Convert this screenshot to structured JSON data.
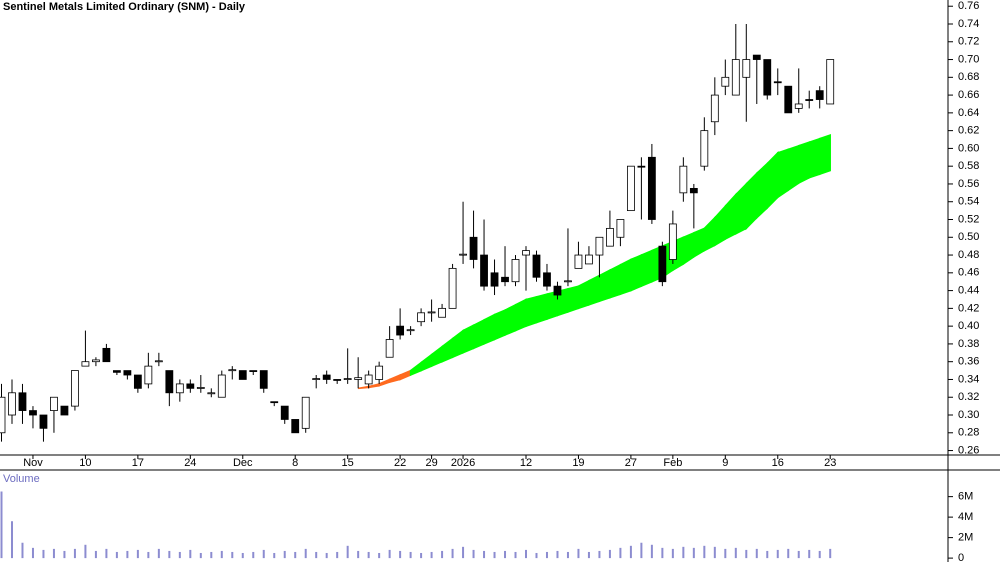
{
  "chart_data": {
    "type": "candlestick",
    "title": "Sentinel Metals Limited Ordinary (SNM) - Daily",
    "categories": [
      null,
      null,
      null,
      "Nov",
      null,
      null,
      null,
      null,
      "10",
      null,
      null,
      null,
      null,
      "17",
      null,
      null,
      null,
      null,
      "24",
      null,
      null,
      null,
      null,
      "Dec",
      null,
      null,
      null,
      null,
      "8",
      null,
      null,
      null,
      null,
      "15",
      null,
      null,
      null,
      null,
      "22",
      null,
      null,
      "29",
      null,
      null,
      "2026",
      null,
      null,
      null,
      null,
      null,
      "12",
      null,
      null,
      null,
      null,
      "19",
      null,
      null,
      null,
      null,
      "27",
      null,
      null,
      null,
      "Feb",
      null,
      null,
      null,
      null,
      "9",
      null,
      null,
      null,
      null,
      "16",
      null,
      null,
      null,
      null,
      "23"
    ],
    "ohlc": [
      [
        0.28,
        0.335,
        0.27,
        0.32
      ],
      [
        0.3,
        0.34,
        0.29,
        0.325
      ],
      [
        0.325,
        0.335,
        0.29,
        0.305
      ],
      [
        0.305,
        0.31,
        0.285,
        0.3
      ],
      [
        0.3,
        0.3,
        0.27,
        0.285
      ],
      [
        0.305,
        0.32,
        0.28,
        0.32
      ],
      [
        0.31,
        0.31,
        0.3,
        0.3
      ],
      [
        0.31,
        0.35,
        0.305,
        0.35
      ],
      [
        0.355,
        0.395,
        0.355,
        0.36
      ],
      [
        0.36,
        0.365,
        0.355,
        0.362
      ],
      [
        0.375,
        0.38,
        0.36,
        0.36
      ],
      [
        0.35,
        0.35,
        0.345,
        0.348
      ],
      [
        0.35,
        0.35,
        0.34,
        0.345
      ],
      [
        0.345,
        0.345,
        0.325,
        0.33
      ],
      [
        0.335,
        0.37,
        0.33,
        0.355
      ],
      [
        0.36,
        0.37,
        0.355,
        0.361
      ],
      [
        0.35,
        0.35,
        0.31,
        0.325
      ],
      [
        0.325,
        0.34,
        0.315,
        0.335
      ],
      [
        0.335,
        0.34,
        0.325,
        0.33
      ],
      [
        0.33,
        0.345,
        0.325,
        0.331
      ],
      [
        0.325,
        0.33,
        0.32,
        0.325
      ],
      [
        0.32,
        0.35,
        0.32,
        0.345
      ],
      [
        0.35,
        0.355,
        0.34,
        0.351
      ],
      [
        0.35,
        0.35,
        0.34,
        0.34
      ],
      [
        0.35,
        0.35,
        0.345,
        0.349
      ],
      [
        0.35,
        0.35,
        0.325,
        0.33
      ],
      [
        0.315,
        0.315,
        0.31,
        0.314
      ],
      [
        0.31,
        0.31,
        0.29,
        0.295
      ],
      [
        0.295,
        0.295,
        0.28,
        0.28
      ],
      [
        0.285,
        0.32,
        0.28,
        0.32
      ],
      [
        0.34,
        0.345,
        0.33,
        0.341
      ],
      [
        0.345,
        0.35,
        0.335,
        0.34
      ],
      [
        0.34,
        0.34,
        0.335,
        0.339
      ],
      [
        0.34,
        0.375,
        0.335,
        0.341
      ],
      [
        0.34,
        0.365,
        0.33,
        0.342
      ],
      [
        0.335,
        0.35,
        0.33,
        0.345
      ],
      [
        0.34,
        0.36,
        0.335,
        0.355
      ],
      [
        0.365,
        0.4,
        0.365,
        0.385
      ],
      [
        0.4,
        0.42,
        0.385,
        0.39
      ],
      [
        0.395,
        0.4,
        0.39,
        0.396
      ],
      [
        0.405,
        0.42,
        0.4,
        0.415
      ],
      [
        0.415,
        0.43,
        0.405,
        0.416
      ],
      [
        0.41,
        0.425,
        0.41,
        0.42
      ],
      [
        0.42,
        0.47,
        0.42,
        0.465
      ],
      [
        0.48,
        0.54,
        0.47,
        0.481
      ],
      [
        0.5,
        0.53,
        0.465,
        0.475
      ],
      [
        0.48,
        0.52,
        0.44,
        0.445
      ],
      [
        0.46,
        0.475,
        0.435,
        0.445
      ],
      [
        0.455,
        0.49,
        0.445,
        0.45
      ],
      [
        0.45,
        0.48,
        0.445,
        0.475
      ],
      [
        0.48,
        0.49,
        0.44,
        0.485
      ],
      [
        0.48,
        0.485,
        0.45,
        0.455
      ],
      [
        0.46,
        0.47,
        0.44,
        0.445
      ],
      [
        0.445,
        0.45,
        0.43,
        0.435
      ],
      [
        0.45,
        0.51,
        0.445,
        0.451
      ],
      [
        0.465,
        0.495,
        0.465,
        0.48
      ],
      [
        0.47,
        0.49,
        0.47,
        0.48
      ],
      [
        0.48,
        0.5,
        0.455,
        0.5
      ],
      [
        0.49,
        0.53,
        0.49,
        0.51
      ],
      [
        0.5,
        0.52,
        0.49,
        0.52
      ],
      [
        0.53,
        0.58,
        0.53,
        0.58
      ],
      [
        0.58,
        0.59,
        0.52,
        0.579
      ],
      [
        0.59,
        0.605,
        0.515,
        0.52
      ],
      [
        0.49,
        0.495,
        0.445,
        0.45
      ],
      [
        0.475,
        0.53,
        0.47,
        0.515
      ],
      [
        0.55,
        0.59,
        0.54,
        0.58
      ],
      [
        0.555,
        0.56,
        0.51,
        0.55
      ],
      [
        0.58,
        0.635,
        0.575,
        0.62
      ],
      [
        0.63,
        0.68,
        0.615,
        0.66
      ],
      [
        0.67,
        0.7,
        0.66,
        0.68
      ],
      [
        0.66,
        0.74,
        0.66,
        0.7
      ],
      [
        0.68,
        0.74,
        0.63,
        0.7
      ],
      [
        0.705,
        0.705,
        0.65,
        0.7
      ],
      [
        0.7,
        0.7,
        0.655,
        0.66
      ],
      [
        0.675,
        0.69,
        0.66,
        0.674
      ],
      [
        0.67,
        0.67,
        0.64,
        0.64
      ],
      [
        0.645,
        0.69,
        0.64,
        0.65
      ],
      [
        0.655,
        0.665,
        0.645,
        0.654
      ],
      [
        0.665,
        0.67,
        0.645,
        0.655
      ],
      [
        0.65,
        0.7,
        0.65,
        0.7
      ]
    ],
    "bands": [
      {
        "color": "#ff6a1f",
        "upper": [
          null,
          null,
          null,
          null,
          null,
          null,
          null,
          null,
          null,
          null,
          null,
          null,
          null,
          null,
          null,
          null,
          null,
          null,
          null,
          null,
          null,
          null,
          null,
          null,
          null,
          null,
          null,
          null,
          null,
          null,
          null,
          null,
          null,
          null,
          0.33,
          0.332,
          0.335,
          0.34,
          0.345,
          0.35,
          null,
          null,
          null,
          null,
          null,
          null,
          null,
          null,
          null,
          null,
          null,
          null,
          null,
          null,
          null,
          null,
          null,
          null,
          null,
          null,
          null,
          null,
          null,
          null,
          null,
          null,
          null,
          null,
          null,
          null,
          null,
          null,
          null,
          null,
          null,
          null,
          null,
          null,
          null,
          null
        ],
        "lower": [
          null,
          null,
          null,
          null,
          null,
          null,
          null,
          null,
          null,
          null,
          null,
          null,
          null,
          null,
          null,
          null,
          null,
          null,
          null,
          null,
          null,
          null,
          null,
          null,
          null,
          null,
          null,
          null,
          null,
          null,
          null,
          null,
          null,
          null,
          0.33,
          0.331,
          0.333,
          0.337,
          0.34,
          0.345,
          null,
          null,
          null,
          null,
          null,
          null,
          null,
          null,
          null,
          null,
          null,
          null,
          null,
          null,
          null,
          null,
          null,
          null,
          null,
          null,
          null,
          null,
          null,
          null,
          null,
          null,
          null,
          null,
          null,
          null,
          null,
          null,
          null,
          null,
          null,
          null,
          null,
          null,
          null,
          null
        ]
      },
      {
        "color": "#00ff00",
        "upper": [
          null,
          null,
          null,
          null,
          null,
          null,
          null,
          null,
          null,
          null,
          null,
          null,
          null,
          null,
          null,
          null,
          null,
          null,
          null,
          null,
          null,
          null,
          null,
          null,
          null,
          null,
          null,
          null,
          null,
          null,
          null,
          null,
          null,
          null,
          null,
          null,
          null,
          null,
          null,
          0.35,
          0.359,
          0.368,
          0.377,
          0.386,
          0.395,
          0.401,
          0.407,
          0.413,
          0.418,
          0.424,
          0.43,
          0.433,
          0.436,
          0.439,
          0.442,
          0.445,
          0.451,
          0.457,
          0.463,
          0.469,
          0.475,
          0.48,
          0.485,
          0.49,
          0.495,
          0.5,
          0.505,
          0.51,
          0.522,
          0.535,
          0.548,
          0.56,
          0.572,
          0.583,
          0.595,
          0.599,
          0.603,
          0.607,
          0.611,
          0.615
        ],
        "lower": [
          null,
          null,
          null,
          null,
          null,
          null,
          null,
          null,
          null,
          null,
          null,
          null,
          null,
          null,
          null,
          null,
          null,
          null,
          null,
          null,
          null,
          null,
          null,
          null,
          null,
          null,
          null,
          null,
          null,
          null,
          null,
          null,
          null,
          null,
          null,
          null,
          null,
          null,
          null,
          0.345,
          0.35,
          0.355,
          0.36,
          0.365,
          0.37,
          0.375,
          0.38,
          0.385,
          0.39,
          0.395,
          0.4,
          0.404,
          0.408,
          0.412,
          0.416,
          0.42,
          0.424,
          0.428,
          0.432,
          0.436,
          0.44,
          0.445,
          0.45,
          0.455,
          0.463,
          0.47,
          0.478,
          0.485,
          0.491,
          0.498,
          0.504,
          0.51,
          0.522,
          0.533,
          0.545,
          0.553,
          0.561,
          0.567,
          0.571,
          0.575
        ]
      }
    ],
    "ylim": [
      0.255,
      0.767
    ],
    "yticks": [
      0.26,
      0.28,
      {
        "value": 0.3,
        "label": "0.30"
      },
      0.32,
      0.34,
      0.36,
      0.38,
      {
        "value": 0.4,
        "label": "0.40"
      },
      0.42,
      0.44,
      0.46,
      0.48,
      {
        "value": 0.5,
        "label": "0.50"
      },
      0.52,
      0.54,
      0.56,
      0.58,
      {
        "value": 0.6,
        "label": "0.60"
      },
      0.62,
      0.64,
      0.66,
      0.68,
      {
        "value": 0.7,
        "label": "0.70"
      },
      0.72,
      0.74,
      0.76
    ],
    "volume_title": "Volume",
    "volume_color": "#8c8cd0",
    "volume": [
      6500000,
      3600000,
      1500000,
      1000000,
      800000,
      900000,
      700000,
      900000,
      1300000,
      700000,
      900000,
      600000,
      700000,
      800000,
      600000,
      900000,
      700000,
      600000,
      800000,
      500000,
      600000,
      700000,
      600000,
      500000,
      600000,
      800000,
      500000,
      700000,
      600000,
      900000,
      600000,
      500000,
      600000,
      1200000,
      700000,
      600000,
      500000,
      800000,
      700000,
      600000,
      500000,
      600000,
      700000,
      900000,
      1100000,
      800000,
      700000,
      600000,
      700000,
      600000,
      800000,
      500000,
      600000,
      700000,
      600000,
      900000,
      600000,
      700000,
      800000,
      1000000,
      1200000,
      1500000,
      1300000,
      1000000,
      900000,
      1100000,
      1000000,
      1200000,
      1100000,
      900000,
      1000000,
      800000,
      900000,
      700000,
      800000,
      900000,
      700000,
      800000,
      700000,
      900000
    ],
    "y2lim": [
      -380000,
      8600000
    ],
    "y2ticks": [
      0,
      {
        "value": 2000000,
        "label": "2M"
      },
      {
        "value": 4000000,
        "label": "4M"
      },
      {
        "value": 6000000,
        "label": "6M"
      }
    ]
  }
}
